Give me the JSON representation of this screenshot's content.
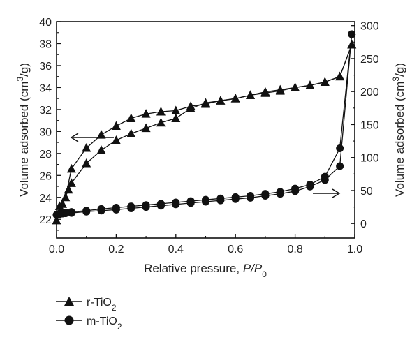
{
  "chart_data": {
    "type": "line",
    "xlabel_main": "Relative pressure, ",
    "xlabel_ratio": "P/P",
    "xlabel_sub": "0",
    "ylabel_left_main": "Volume adsorbed (cm",
    "ylabel_left_sup": "3",
    "ylabel_left_end": "/g)",
    "ylabel_right_main": "Volume adsorbed (cm",
    "ylabel_right_sup": "3",
    "ylabel_right_end": "/g)",
    "xlim": [
      0.0,
      1.0
    ],
    "ylim_left": [
      20.3,
      40
    ],
    "ylim_right": [
      -22,
      306
    ],
    "x_ticks": [
      "0.0",
      "0.2",
      "0.4",
      "0.6",
      "0.8",
      "1.0"
    ],
    "x_tick_values": [
      0.0,
      0.2,
      0.4,
      0.6,
      0.8,
      1.0
    ],
    "y_left_ticks": [
      "22",
      "24",
      "26",
      "28",
      "30",
      "32",
      "34",
      "36",
      "38",
      "40"
    ],
    "y_left_tick_values": [
      22,
      24,
      26,
      28,
      30,
      32,
      34,
      36,
      38,
      40
    ],
    "y_right_ticks": [
      "0",
      "50",
      "100",
      "150",
      "200",
      "250",
      "300"
    ],
    "y_right_tick_values": [
      0,
      50,
      100,
      150,
      200,
      250,
      300
    ],
    "series": [
      {
        "name": "r-TiO",
        "name_sub": "2",
        "marker": "triangle",
        "axis": "left",
        "adsorption": {
          "x": [
            0.0,
            0.02,
            0.04,
            0.05,
            0.1,
            0.15,
            0.2,
            0.25,
            0.3,
            0.35,
            0.4,
            0.45,
            0.5,
            0.55,
            0.6,
            0.65,
            0.7,
            0.75,
            0.8,
            0.85,
            0.9,
            0.95,
            0.99
          ],
          "y": [
            21.9,
            23.4,
            24.7,
            25.3,
            27.1,
            28.3,
            29.2,
            29.8,
            30.3,
            30.8,
            31.2,
            32.1,
            32.6,
            32.8,
            33.0,
            33.3,
            33.5,
            33.7,
            34.0,
            34.2,
            34.5,
            35.0,
            37.9
          ]
        },
        "desorption": {
          "x": [
            0.99,
            0.95,
            0.9,
            0.85,
            0.8,
            0.75,
            0.7,
            0.65,
            0.6,
            0.55,
            0.5,
            0.45,
            0.4,
            0.35,
            0.3,
            0.25,
            0.2,
            0.15,
            0.1,
            0.05,
            0.03,
            0.01
          ],
          "y": [
            37.9,
            35.0,
            34.5,
            34.2,
            34.0,
            33.8,
            33.6,
            33.3,
            33.0,
            32.8,
            32.5,
            32.3,
            31.9,
            31.8,
            31.6,
            31.2,
            30.5,
            29.7,
            28.5,
            26.6,
            24.0,
            23.2
          ]
        }
      },
      {
        "name": "m-TiO",
        "name_sub": "2",
        "marker": "circle",
        "axis": "right",
        "adsorption": {
          "x": [
            0.0,
            0.01,
            0.02,
            0.03,
            0.05,
            0.1,
            0.15,
            0.2,
            0.25,
            0.3,
            0.35,
            0.4,
            0.45,
            0.5,
            0.55,
            0.6,
            0.65,
            0.7,
            0.75,
            0.8,
            0.85,
            0.9,
            0.95,
            0.99
          ],
          "y": [
            13,
            14,
            15,
            15.5,
            16,
            18,
            19.5,
            21,
            23,
            25,
            27,
            29,
            31,
            33,
            35,
            37,
            39,
            42,
            45,
            49,
            56,
            66,
            87,
            287
          ]
        },
        "desorption": {
          "x": [
            0.99,
            0.95,
            0.9,
            0.85,
            0.8,
            0.75,
            0.7,
            0.65,
            0.6,
            0.55,
            0.5,
            0.45,
            0.4,
            0.35,
            0.3,
            0.25,
            0.2,
            0.15,
            0.1,
            0.05,
            0.03,
            0.02,
            0.01
          ],
          "y": [
            287,
            114,
            71,
            59,
            53,
            48,
            45,
            42,
            40,
            38,
            36,
            34,
            32,
            30,
            28,
            26,
            24,
            22,
            19.5,
            17.5,
            16.5,
            16,
            15
          ]
        }
      }
    ],
    "legend_position": "below-left",
    "grid": false
  },
  "colors": {
    "ink": "#111111"
  }
}
